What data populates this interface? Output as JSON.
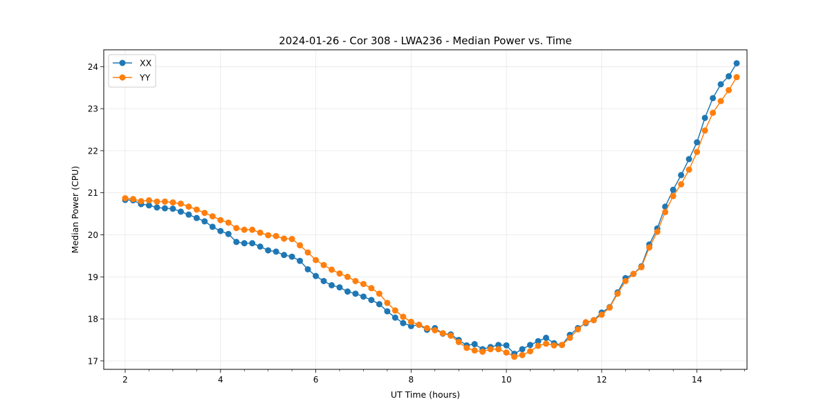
{
  "chart_data": {
    "type": "line",
    "title": "2024-01-26 - Cor 308 - LWA236 - Median Power vs. Time",
    "xlabel": "UT Time (hours)",
    "ylabel": "Median Power (CPU)",
    "xlim": [
      1.55,
      15.05
    ],
    "ylim": [
      16.8,
      24.4
    ],
    "xticks": [
      2,
      4,
      6,
      8,
      10,
      12,
      14
    ],
    "yticks": [
      17,
      18,
      19,
      20,
      21,
      22,
      23,
      24
    ],
    "grid": true,
    "legend_position": "top-left",
    "x": [
      2.0,
      2.1667,
      2.3333,
      2.5,
      2.6667,
      2.8333,
      3.0,
      3.1667,
      3.3333,
      3.5,
      3.6667,
      3.8333,
      4.0,
      4.1667,
      4.3333,
      4.5,
      4.6667,
      4.8333,
      5.0,
      5.1667,
      5.3333,
      5.5,
      5.6667,
      5.8333,
      6.0,
      6.1667,
      6.3333,
      6.5,
      6.6667,
      6.8333,
      7.0,
      7.1667,
      7.3333,
      7.5,
      7.6667,
      7.8333,
      8.0,
      8.1667,
      8.3333,
      8.5,
      8.6667,
      8.8333,
      9.0,
      9.1667,
      9.3333,
      9.5,
      9.6667,
      9.8333,
      10.0,
      10.1667,
      10.3333,
      10.5,
      10.6667,
      10.8333,
      11.0,
      11.1667,
      11.3333,
      11.5,
      11.6667,
      11.8333,
      12.0,
      12.1667,
      12.3333,
      12.5,
      12.6667,
      12.8333,
      13.0,
      13.1667,
      13.3333,
      13.5,
      13.6667,
      13.8333,
      14.0,
      14.1667,
      14.3333,
      14.5,
      14.6667,
      14.8333
    ],
    "series": [
      {
        "name": "XX",
        "color": "#1f77b4",
        "values": [
          20.83,
          20.82,
          20.73,
          20.7,
          20.65,
          20.63,
          20.62,
          20.55,
          20.48,
          20.4,
          20.32,
          20.19,
          20.09,
          20.02,
          19.83,
          19.8,
          19.8,
          19.72,
          19.63,
          19.6,
          19.52,
          19.48,
          19.38,
          19.18,
          19.02,
          18.9,
          18.8,
          18.75,
          18.65,
          18.6,
          18.53,
          18.45,
          18.35,
          18.18,
          18.03,
          17.9,
          17.83,
          17.86,
          17.74,
          17.78,
          17.65,
          17.63,
          17.5,
          17.37,
          17.4,
          17.28,
          17.33,
          17.38,
          17.37,
          17.17,
          17.28,
          17.38,
          17.47,
          17.55,
          17.42,
          17.38,
          17.62,
          17.78,
          17.9,
          17.97,
          18.15,
          18.28,
          18.63,
          18.97,
          19.07,
          19.25,
          19.77,
          20.15,
          20.67,
          21.07,
          21.42,
          21.8,
          22.2,
          22.78,
          23.25,
          23.58,
          23.77,
          24.08
        ]
      },
      {
        "name": "YY",
        "color": "#ff7f0e",
        "values": [
          20.87,
          20.85,
          20.8,
          20.82,
          20.79,
          20.79,
          20.77,
          20.74,
          20.67,
          20.6,
          20.52,
          20.44,
          20.35,
          20.29,
          20.16,
          20.12,
          20.12,
          20.05,
          19.99,
          19.97,
          19.91,
          19.9,
          19.75,
          19.58,
          19.4,
          19.28,
          19.17,
          19.08,
          19.0,
          18.9,
          18.83,
          18.73,
          18.6,
          18.38,
          18.2,
          18.05,
          17.93,
          17.86,
          17.78,
          17.73,
          17.66,
          17.6,
          17.45,
          17.31,
          17.25,
          17.22,
          17.28,
          17.28,
          17.2,
          17.1,
          17.14,
          17.23,
          17.36,
          17.41,
          17.37,
          17.38,
          17.55,
          17.75,
          17.92,
          17.97,
          18.1,
          18.27,
          18.6,
          18.9,
          19.07,
          19.23,
          19.7,
          20.07,
          20.54,
          20.92,
          21.2,
          21.55,
          21.97,
          22.48,
          22.9,
          23.18,
          23.44,
          23.75
        ]
      }
    ]
  }
}
